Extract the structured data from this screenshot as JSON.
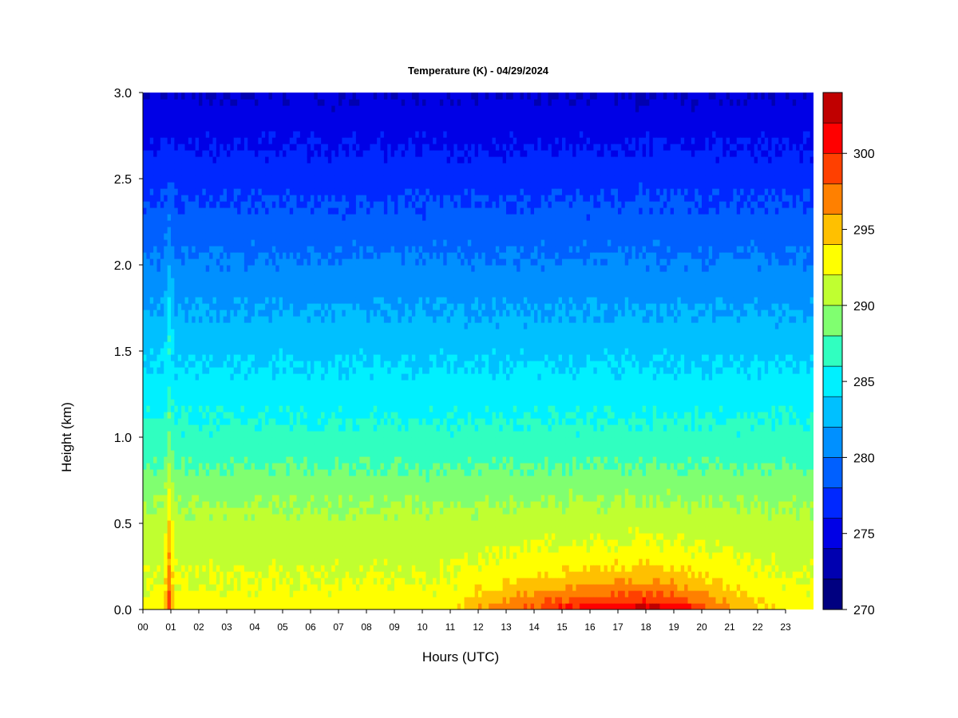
{
  "chart_data": {
    "type": "heatmap",
    "title": "Temperature (K) - 04/29/2024",
    "xlabel": "Hours (UTC)",
    "ylabel": "Height (km)",
    "x_ticks": [
      "00",
      "01",
      "02",
      "03",
      "04",
      "05",
      "06",
      "07",
      "08",
      "09",
      "10",
      "11",
      "12",
      "13",
      "14",
      "15",
      "16",
      "17",
      "18",
      "19",
      "20",
      "21",
      "22",
      "23"
    ],
    "xlim": [
      0,
      24
    ],
    "y_ticks": [
      "0.0",
      "0.5",
      "1.0",
      "1.5",
      "2.0",
      "2.5",
      "3.0"
    ],
    "ylim": [
      0,
      3
    ],
    "colorbar": {
      "ticks": [
        "270",
        "275",
        "280",
        "285",
        "290",
        "295",
        "300"
      ],
      "range": [
        270,
        304
      ],
      "levels": [
        270,
        272,
        274,
        276,
        278,
        280,
        282,
        284,
        286,
        288,
        290,
        292,
        294,
        296,
        298,
        300,
        302,
        304
      ],
      "colors": [
        "#000080",
        "#0000b0",
        "#0000e6",
        "#0028ff",
        "#0060ff",
        "#0090ff",
        "#00c0ff",
        "#00f0ff",
        "#30ffc0",
        "#80ff70",
        "#c0ff30",
        "#ffff00",
        "#ffc000",
        "#ff8000",
        "#ff4000",
        "#ff0000",
        "#c00000",
        "#800000"
      ]
    },
    "field_model": {
      "surface_temperature_by_hour": [
        [
          0,
          293
        ],
        [
          1,
          293
        ],
        [
          2,
          293
        ],
        [
          4,
          293
        ],
        [
          6,
          293
        ],
        [
          8,
          293
        ],
        [
          10,
          293
        ],
        [
          11,
          293
        ],
        [
          12,
          296
        ],
        [
          13,
          297.5
        ],
        [
          14,
          299
        ],
        [
          15,
          300.5
        ],
        [
          16,
          301.5
        ],
        [
          17,
          302.5
        ],
        [
          18,
          303
        ],
        [
          19,
          302
        ],
        [
          20,
          299
        ],
        [
          21,
          296.5
        ],
        [
          22,
          294.5
        ],
        [
          23,
          293.5
        ],
        [
          24,
          293
        ]
      ],
      "temperature_at_3km": 274
    }
  }
}
